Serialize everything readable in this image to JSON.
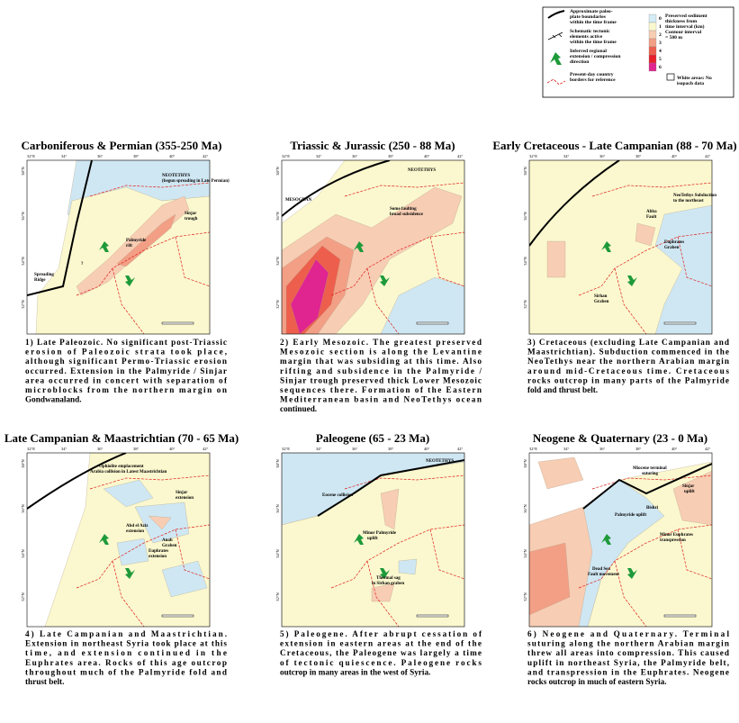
{
  "legend": {
    "symbols": [
      [
        "Approximate paleo-",
        "plate boundaries",
        "within the time frame"
      ],
      [
        "Schematic tectonic",
        "elements active",
        "within the time frame"
      ],
      [
        "Inferred regional",
        "extension / compression",
        "direction"
      ],
      [
        "Present-day country",
        "borders for reference"
      ]
    ],
    "scale": [
      "0",
      "1",
      "2",
      "3",
      "4",
      "5",
      "6"
    ],
    "scale_title": [
      "Preserved sediment",
      "thickness from",
      "time interval (km)",
      "Contour interval",
      "= 500 m"
    ],
    "white_note": [
      "White areas: No",
      "isopach data"
    ]
  },
  "lon_labels": [
    "32°E",
    "34°",
    "36°",
    "38°",
    "40°",
    "42°"
  ],
  "lat_labels": [
    "38°N",
    "36°N",
    "34°N",
    "32°N"
  ],
  "panels": [
    {
      "title": "Carboniferous & Permian (355-250 Ma)",
      "labels": [
        "NEOTETHYS",
        "(begun spreading in Late Permian)",
        "Sinjar",
        "trough",
        "Palmyride",
        "rift",
        "Spreading",
        "Ridge",
        "?"
      ],
      "caption": [
        "1) Late Paleozoic.  No significant post-Triassic",
        "erosion of Paleozoic strata took place,",
        "although significant Permo-Triassic erosion",
        "occurred.  Extension in the Palmyride / Sinjar",
        "area occurred in concert with separation of",
        "microblocks from the northern margin on",
        "Gondwanaland."
      ]
    },
    {
      "title": "Triassic & Jurassic (250 - 88 Ma)",
      "labels": [
        "MESOGEAN",
        "NEOTETHYS",
        "Some faulting",
        "broad subsidence"
      ],
      "caption": [
        "2) Early Mesozoic.  The greatest preserved",
        "Mesozoic section is along the Levantine",
        "margin that was subsiding at this time.  Also",
        "rifting and subsidence in the Palmyride /",
        "Sinjar trough preserved thick Lower Mesozoic",
        "sequences there.  Formation of the Eastern",
        "Mediterranean basin and NeoTethys ocean",
        "continued."
      ]
    },
    {
      "title": "Early Cretaceous - Late Campanian (88 - 70 Ma)",
      "labels": [
        "NeoTethys Subduction",
        "to the northeast",
        "Abba",
        "Fault",
        "Euphrates",
        "Graben",
        "Sirhan",
        "Graben"
      ],
      "caption": [
        "3) Cretaceous (excluding Late Campanian and",
        "Maastrichtian).  Subduction commenced in the",
        "NeoTethys near the northern Arabian margin",
        "around mid-Cretaceous time.  Cretaceous",
        "rocks outcrop in many parts of the Palmyride",
        "fold and thrust belt."
      ]
    },
    {
      "title": "Late Campanian & Maastrichtian (70 - 65 Ma)",
      "labels": [
        "Ophiolite emplacement",
        "Arabia collision in Latest Maastrichtian",
        "Abd el Aziz",
        "extension",
        "Sinjar",
        "extension",
        "Anah",
        "Graben",
        "Euphrates",
        "extension"
      ],
      "caption": [
        "4) Late Campanian and Maastrichtian.",
        "Extension in northeast Syria took place at this",
        "time, and extension continued in the",
        "Euphrates area.  Rocks of this age outcrop",
        "throughout much of the Palmyride fold and",
        "thrust belt."
      ]
    },
    {
      "title": "Paleogene (65 - 23 Ma)",
      "labels": [
        "NEOTETHYS",
        "Eocene collision",
        "Minor Palmyride",
        "uplift",
        "Thermal sag",
        "in Sirhan graben"
      ],
      "caption": [
        "5) Paleogene.  After abrupt cessation of",
        "extension in eastern areas at the end of the",
        "Cretaceous, the Paleogene was largely a time",
        "of tectonic quiescence.  Paleogene rocks",
        "outcrop in many areas in the west of Syria."
      ]
    },
    {
      "title": "Neogene & Quaternary (23 - 0 Ma)",
      "labels": [
        "Miocene terminal",
        "suturing",
        "Sinjar",
        "uplift",
        "Bishri",
        "Palmyride uplift",
        "Dead Sea",
        "Fault movement",
        "Minor Euphrates",
        "transpression"
      ],
      "caption": [
        "6) Neogene and Quaternary.  Terminal",
        "suturing along the northern Arabian margin",
        "threw all areas into compression.  This caused",
        "uplift in northeast Syria, the Palmyride belt,",
        "and transpression in the Euphrates.  Neogene",
        "rocks outcrop in much of eastern Syria."
      ]
    }
  ]
}
